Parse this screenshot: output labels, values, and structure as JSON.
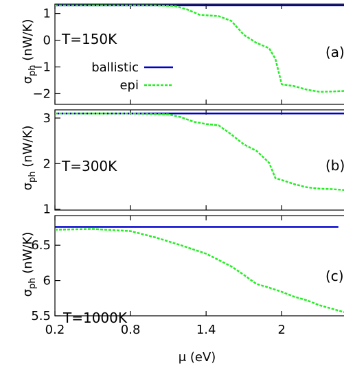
{
  "chart_data": [
    {
      "type": "line",
      "panel_label": "(a)",
      "annotation": "T=150K",
      "ylabel": "σph (nW/K)",
      "ylabel_main": "σ",
      "ylabel_sub": "ph",
      "ylabel_unit": " (nW/K)",
      "ylim": [
        -2.4,
        1.35
      ],
      "yticks": [
        1,
        0,
        -1,
        -2
      ],
      "ytick_labels": [
        "1",
        "0",
        "−1",
        "−2"
      ],
      "legend": {
        "placement": "left",
        "entries": [
          {
            "name": "ballistic"
          },
          {
            "name": "epi"
          }
        ]
      },
      "series": [
        {
          "name": "ballistic",
          "color": "#0000cc",
          "style": "solid",
          "x": [
            0.2,
            2.7
          ],
          "y": [
            1.3,
            1.3
          ]
        },
        {
          "name": "epi",
          "color": "#22ee22",
          "style": "dashed",
          "x": [
            0.2,
            0.6,
            1.0,
            1.15,
            1.25,
            1.35,
            1.5,
            1.6,
            1.7,
            1.8,
            1.9,
            1.95,
            2.0,
            2.1,
            2.2,
            2.3,
            2.4,
            2.5
          ],
          "y": [
            1.3,
            1.3,
            1.3,
            1.28,
            1.15,
            0.95,
            0.9,
            0.72,
            0.2,
            -0.1,
            -0.3,
            -0.7,
            -1.65,
            -1.72,
            -1.85,
            -1.93,
            -1.92,
            -1.9
          ]
        }
      ]
    },
    {
      "type": "line",
      "panel_label": "(b)",
      "annotation": "T=300K",
      "ylabel": "σph (nW/K)",
      "ylabel_main": "σ",
      "ylabel_sub": "ph",
      "ylabel_unit": " (nW/K)",
      "ylim": [
        0.98,
        3.18
      ],
      "yticks": [
        3,
        2,
        1
      ],
      "ytick_labels": [
        "3",
        "2",
        "1"
      ],
      "series": [
        {
          "name": "ballistic",
          "color": "#0000cc",
          "style": "solid",
          "x": [
            0.2,
            2.7
          ],
          "y": [
            3.1,
            3.1
          ]
        },
        {
          "name": "epi",
          "color": "#22ee22",
          "style": "dashed",
          "x": [
            0.2,
            0.8,
            1.1,
            1.2,
            1.3,
            1.4,
            1.5,
            1.6,
            1.7,
            1.8,
            1.9,
            1.95,
            2.0,
            2.1,
            2.2,
            2.3,
            2.4,
            2.5
          ],
          "y": [
            3.1,
            3.1,
            3.08,
            3.02,
            2.92,
            2.87,
            2.84,
            2.64,
            2.42,
            2.28,
            2.02,
            1.68,
            1.64,
            1.55,
            1.48,
            1.45,
            1.44,
            1.42
          ]
        }
      ]
    },
    {
      "type": "line",
      "panel_label": "(c)",
      "annotation": "T=1000K",
      "ylabel": "σph (nW/K)",
      "ylabel_main": "σ",
      "ylabel_sub": "ph",
      "ylabel_unit": " (nW/K)",
      "ylim": [
        5.5,
        6.92
      ],
      "yticks": [
        6.5,
        6,
        5.5
      ],
      "ytick_labels": [
        "6.5",
        "6",
        "5.5"
      ],
      "xlabel": "μ (eV)",
      "xlim": [
        0.2,
        2.5
      ],
      "xticks": [
        0.2,
        0.8,
        1.4,
        2.0
      ],
      "xtick_labels": [
        "0.2",
        "0.8",
        "1.4",
        "2"
      ],
      "series": [
        {
          "name": "ballistic",
          "color": "#0000cc",
          "style": "solid",
          "x": [
            0.2,
            2.45
          ],
          "y": [
            6.76,
            6.76
          ]
        },
        {
          "name": "epi",
          "color": "#22ee22",
          "style": "dashed",
          "x": [
            0.2,
            0.5,
            0.8,
            1.0,
            1.2,
            1.4,
            1.6,
            1.7,
            1.8,
            1.9,
            2.0,
            2.1,
            2.2,
            2.3,
            2.4,
            2.5
          ],
          "y": [
            6.72,
            6.73,
            6.7,
            6.61,
            6.5,
            6.38,
            6.2,
            6.08,
            5.95,
            5.9,
            5.84,
            5.77,
            5.72,
            5.65,
            5.6,
            5.55
          ]
        }
      ]
    }
  ]
}
